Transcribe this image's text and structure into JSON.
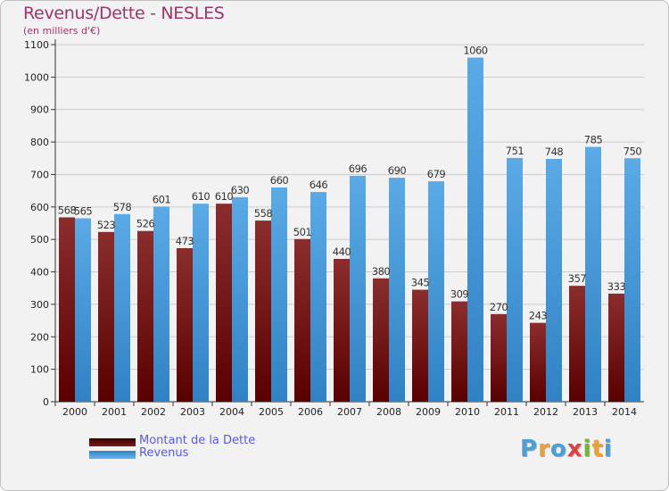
{
  "header": {
    "title": "Revenus/Dette - NESLES",
    "subtitle": "(en milliers d'€)"
  },
  "chart_data": {
    "type": "bar",
    "categories": [
      "2000",
      "2001",
      "2002",
      "2003",
      "2004",
      "2005",
      "2006",
      "2007",
      "2008",
      "2009",
      "2010",
      "2011",
      "2012",
      "2013",
      "2014"
    ],
    "series": [
      {
        "name": "Montant de la Dette",
        "values": [
          568,
          523,
          526,
          473,
          610,
          558,
          501,
          440,
          380,
          345,
          309,
          270,
          243,
          357,
          333
        ],
        "labels": [
          "568",
          "523",
          "526",
          "473",
          "610",
          "558",
          "501",
          "440",
          "380",
          "345",
          "309",
          "270",
          "243",
          "357",
          "333"
        ],
        "color_top": "#8b2d2d",
        "color_bottom": "#5a0000"
      },
      {
        "name": "Revenus",
        "values": [
          565,
          578,
          601,
          610,
          630,
          660,
          646,
          696,
          690,
          679,
          1060,
          751,
          748,
          785,
          750
        ],
        "labels": [
          "565",
          "578",
          "601",
          "610",
          "630",
          "660",
          "646",
          "696",
          "690",
          "679",
          "1060",
          "751",
          "748",
          "785",
          "750"
        ],
        "color_top": "#5aaae6",
        "color_bottom": "#2f82c4"
      }
    ],
    "ylim": [
      0,
      1100
    ],
    "yticks": [
      "0",
      "100",
      "200",
      "300",
      "400",
      "500",
      "600",
      "700",
      "800",
      "900",
      "1000",
      "1100"
    ],
    "grid": true,
    "legend_position": "bottom-left"
  },
  "legend": [
    {
      "label": "Montant de la Dette",
      "color": "#5a0000"
    },
    {
      "label": "Revenus",
      "color": "#4aa0e0"
    }
  ],
  "logo": {
    "letters": [
      "P",
      "r",
      "o",
      "x",
      "i",
      "t",
      "i"
    ],
    "colors": [
      "#4a9fd8",
      "#f0a030",
      "#4a9fd8",
      "#e04040",
      "#70b830",
      "#f0a030",
      "#4a9fd8"
    ]
  },
  "colors": {
    "title": "#a0336b",
    "grid": "#cccccc",
    "legend_text": "#5a5adc"
  }
}
